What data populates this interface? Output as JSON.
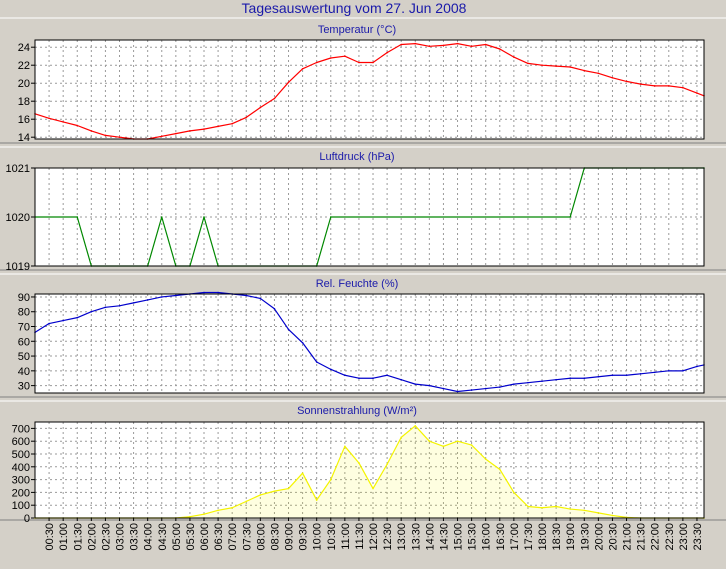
{
  "page_title": "Tagesauswertung vom 27. Jun 2008",
  "colors": {
    "background": "#d4d0c8",
    "plot_bg": "#ffffff",
    "title": "#1a1aaa",
    "grid": "#9a9a9a",
    "temperature": "#ff0000",
    "pressure": "#008800",
    "humidity": "#0000cc",
    "radiation": "#f4f400"
  },
  "x_ticks": [
    "00:30",
    "01:00",
    "01:30",
    "02:00",
    "02:30",
    "03:00",
    "03:30",
    "04:00",
    "04:30",
    "05:00",
    "05:30",
    "06:00",
    "06:30",
    "07:00",
    "07:30",
    "08:00",
    "08:30",
    "09:00",
    "09:30",
    "10:00",
    "10:30",
    "11:00",
    "11:30",
    "12:00",
    "12:30",
    "13:00",
    "13:30",
    "14:00",
    "14:30",
    "15:00",
    "15:30",
    "16:00",
    "16:30",
    "17:00",
    "17:30",
    "18:00",
    "18:30",
    "19:00",
    "19:30",
    "20:00",
    "20:30",
    "21:00",
    "21:30",
    "22:00",
    "22:30",
    "23:00",
    "23:30"
  ],
  "chart_data": [
    {
      "type": "line",
      "title": "Temperatur (°C)",
      "ylim": [
        13.8,
        24.8
      ],
      "yticks": [
        14,
        16,
        18,
        20,
        22,
        24
      ],
      "xlim": [
        0.0,
        23.75
      ],
      "grid": true,
      "series": [
        {
          "color": "#ff0000",
          "x": [
            0.0,
            0.5,
            1.0,
            1.5,
            2.0,
            2.5,
            3.0,
            3.5,
            4.0,
            4.5,
            5.0,
            5.5,
            6.0,
            6.5,
            7.0,
            7.5,
            8.0,
            8.5,
            9.0,
            9.5,
            10.0,
            10.5,
            11.0,
            11.5,
            12.0,
            12.5,
            13.0,
            13.5,
            14.0,
            14.5,
            15.0,
            15.5,
            16.0,
            16.5,
            17.0,
            17.5,
            18.0,
            18.5,
            19.0,
            19.5,
            20.0,
            20.5,
            21.0,
            21.5,
            22.0,
            22.5,
            23.0,
            23.5,
            23.75
          ],
          "y": [
            16.6,
            16.1,
            15.7,
            15.3,
            14.7,
            14.2,
            14.0,
            13.8,
            13.8,
            14.1,
            14.4,
            14.7,
            14.9,
            15.2,
            15.5,
            16.2,
            17.3,
            18.3,
            20.1,
            21.6,
            22.3,
            22.8,
            23.0,
            22.3,
            22.3,
            23.4,
            24.3,
            24.4,
            24.1,
            24.2,
            24.4,
            24.1,
            24.3,
            23.8,
            22.9,
            22.2,
            22.0,
            21.9,
            21.8,
            21.4,
            21.1,
            20.6,
            20.2,
            19.9,
            19.7,
            19.7,
            19.5,
            18.9,
            18.6
          ]
        }
      ]
    },
    {
      "type": "line",
      "title": "Luftdruck (hPa)",
      "ylim": [
        1019,
        1021
      ],
      "yticks": [
        1019,
        1020,
        1021
      ],
      "xlim": [
        0.0,
        23.75
      ],
      "grid": true,
      "series": [
        {
          "color": "#008800",
          "x": [
            0.0,
            1.5,
            2.0,
            4.0,
            4.5,
            5.0,
            5.5,
            6.0,
            6.5,
            10.0,
            10.5,
            19.0,
            19.5,
            23.75
          ],
          "y": [
            1020,
            1020,
            1019,
            1019,
            1020,
            1019,
            1019,
            1020,
            1019,
            1019,
            1020,
            1020,
            1021,
            1021
          ]
        }
      ]
    },
    {
      "type": "line",
      "title": "Rel. Feuchte (%)",
      "ylim": [
        25,
        92
      ],
      "yticks": [
        30,
        40,
        50,
        60,
        70,
        80,
        90
      ],
      "xlim": [
        0.0,
        23.75
      ],
      "grid": true,
      "series": [
        {
          "color": "#0000cc",
          "x": [
            0.0,
            0.5,
            1.0,
            1.5,
            2.0,
            2.5,
            3.0,
            3.5,
            4.0,
            4.5,
            5.0,
            5.5,
            6.0,
            6.5,
            7.0,
            7.5,
            8.0,
            8.5,
            9.0,
            9.5,
            10.0,
            10.5,
            11.0,
            11.5,
            12.0,
            12.5,
            13.0,
            13.5,
            14.0,
            14.5,
            15.0,
            15.5,
            16.0,
            16.5,
            17.0,
            17.5,
            18.0,
            18.5,
            19.0,
            19.5,
            20.0,
            20.5,
            21.0,
            21.5,
            22.0,
            22.5,
            23.0,
            23.5,
            23.75
          ],
          "y": [
            66,
            72,
            74,
            76,
            80,
            83,
            84,
            86,
            88,
            90,
            91,
            92,
            93,
            93,
            92,
            91,
            89,
            82,
            68,
            59,
            46,
            41,
            37,
            35,
            35,
            37,
            34,
            31,
            30,
            28,
            26,
            27,
            28,
            29,
            31,
            32,
            33,
            34,
            35,
            35,
            36,
            37,
            37,
            38,
            39,
            40,
            40,
            43,
            44
          ]
        }
      ]
    },
    {
      "type": "area",
      "title": "Sonnenstrahlung (W/m²)",
      "ylim": [
        0,
        750
      ],
      "yticks": [
        0,
        100,
        200,
        300,
        400,
        500,
        600,
        700
      ],
      "xlim": [
        0.0,
        23.75
      ],
      "grid": true,
      "series": [
        {
          "color": "#f4f400",
          "x": [
            0.0,
            5.0,
            5.5,
            6.0,
            6.5,
            7.0,
            7.5,
            8.0,
            8.5,
            9.0,
            9.5,
            10.0,
            10.5,
            11.0,
            11.5,
            12.0,
            12.5,
            13.0,
            13.5,
            14.0,
            14.5,
            15.0,
            15.5,
            16.0,
            16.5,
            17.0,
            17.5,
            18.0,
            18.5,
            19.0,
            19.5,
            20.0,
            20.5,
            21.0,
            21.5,
            23.75
          ],
          "y": [
            0,
            0,
            10,
            30,
            60,
            80,
            130,
            180,
            210,
            230,
            350,
            140,
            300,
            560,
            430,
            230,
            420,
            630,
            720,
            600,
            560,
            600,
            570,
            460,
            380,
            200,
            90,
            80,
            90,
            70,
            60,
            40,
            20,
            5,
            0,
            0
          ]
        }
      ]
    }
  ]
}
